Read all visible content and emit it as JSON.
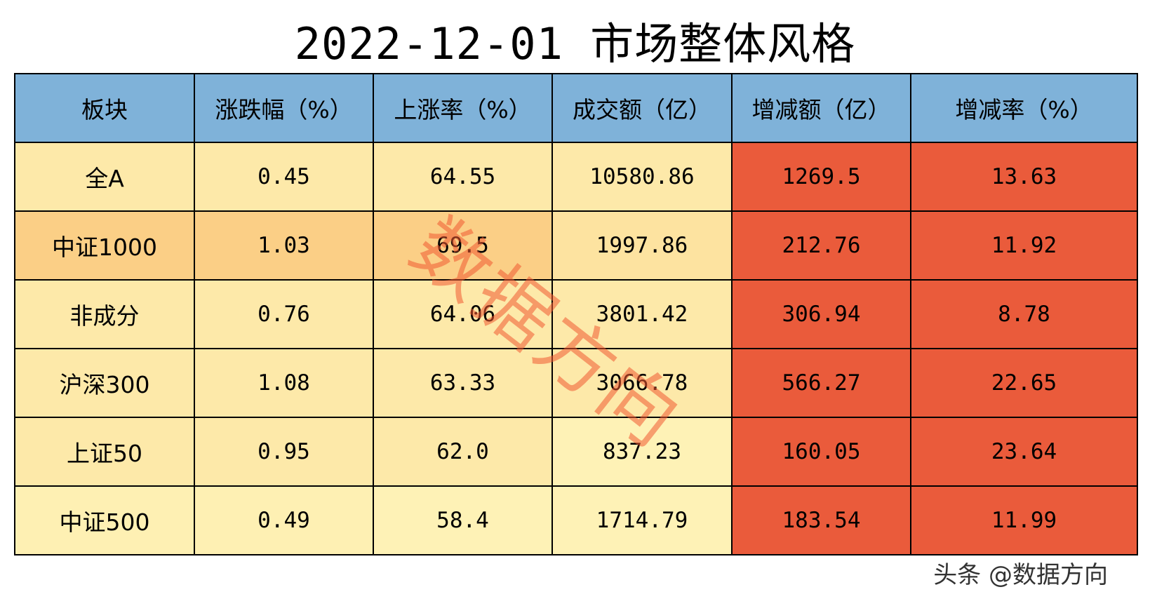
{
  "chart_data": {
    "type": "table",
    "title": "2022-12-01  市场整体风格",
    "columns": [
      "板块",
      "涨跌幅（%）",
      "上涨率（%）",
      "成交额（亿）",
      "增减额（亿）",
      "增减率（%）"
    ],
    "rows": [
      [
        "全A",
        "0.45",
        "64.55",
        "10580.86",
        "1269.5",
        "13.63"
      ],
      [
        "中证1000",
        "1.03",
        "69.5",
        "1997.86",
        "212.76",
        "11.92"
      ],
      [
        "非成分",
        "0.76",
        "64.06",
        "3801.42",
        "306.94",
        "8.78"
      ],
      [
        "沪深300",
        "1.08",
        "63.33",
        "3066.78",
        "566.27",
        "22.65"
      ],
      [
        "上证50",
        "0.95",
        "62.0",
        "837.23",
        "160.05",
        "23.64"
      ],
      [
        "中证500",
        "0.49",
        "58.4",
        "1714.79",
        "183.54",
        "11.99"
      ]
    ],
    "cell_colors": [
      [
        "#fde9a9",
        "#fde9a9",
        "#fde9a9",
        "#fde9a9",
        "#ea5b3b",
        "#ea5b3b"
      ],
      [
        "#fbcf86",
        "#fbcf86",
        "#fbcf86",
        "#fde3a0",
        "#ea5b3b",
        "#ea5b3b"
      ],
      [
        "#fde9a9",
        "#fde9a9",
        "#fde9a9",
        "#fde9a9",
        "#ea5b3b",
        "#ea5b3b"
      ],
      [
        "#fde9a9",
        "#fde9a9",
        "#fde9a9",
        "#fde9a9",
        "#ea5b3b",
        "#ea5b3b"
      ],
      [
        "#fde9a9",
        "#fde9a9",
        "#fde9a9",
        "#fef2b6",
        "#ea5b3b",
        "#ea5b3b"
      ],
      [
        "#fef0b3",
        "#fef0b3",
        "#fef2b6",
        "#fef2b6",
        "#ea5b3b",
        "#ea5b3b"
      ]
    ],
    "header_color": "#7fb2d9"
  },
  "watermark": "数据方向",
  "footer": "头条 @数据方向"
}
